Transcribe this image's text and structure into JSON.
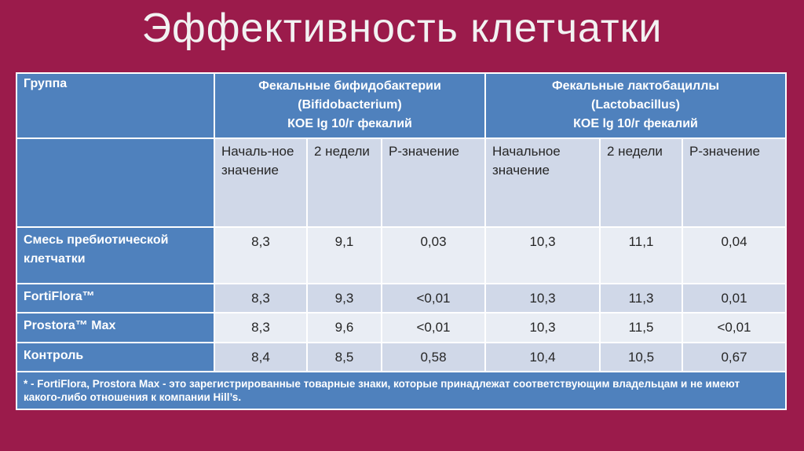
{
  "title": "Эффективность клетчатки",
  "table": {
    "corner": "Группа",
    "groups": [
      {
        "lines": [
          "Фекальные бифидобактерии",
          "(Bifidobacterium)",
          "КОЕ lg 10/г фекалий"
        ]
      },
      {
        "lines": [
          "Фекальные лактобациллы",
          "(Lactobacillus)",
          "КОЕ lg 10/г фекалий"
        ]
      }
    ],
    "subheaders": [
      "Началь-ное значение",
      "2 недели",
      "P-значение",
      "Начальное значение",
      "2 недели",
      "P-значение"
    ],
    "rows": [
      {
        "name": "Смесь пребиотической клетчатки",
        "cells": [
          "8,3",
          "9,1",
          "0,03",
          "10,3",
          "11,1",
          "0,04"
        ]
      },
      {
        "name": "FortiFlora™",
        "cells": [
          "8,3",
          "9,3",
          "<0,01",
          "10,3",
          "11,3",
          "0,01"
        ]
      },
      {
        "name": "Prostora™ Max",
        "cells": [
          "8,3",
          "9,6",
          "<0,01",
          "10,3",
          "11,5",
          "<0,01"
        ]
      },
      {
        "name": "Контроль",
        "cells": [
          "8,4",
          "8,5",
          "0,58",
          "10,4",
          "10,5",
          "0,67"
        ]
      }
    ],
    "footnote": "* - FortiFlora, Prostora Max - это зарегистрированные товарные знаки, которые принадлежат соответствующим владельцам и не имеют какого-либо отношения к компании Hill’s."
  }
}
